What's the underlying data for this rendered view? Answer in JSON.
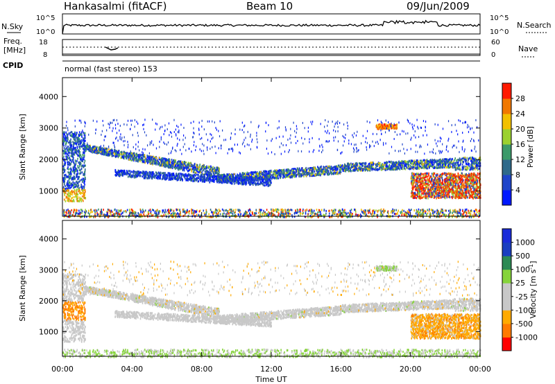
{
  "header": {
    "station": "Hankasalmi (fitACF)",
    "beam": "Beam 10",
    "date": "09/Jun/2009"
  },
  "top_panel": {
    "nsky_label": "N.Sky",
    "nsearch_label": "N.Search",
    "left_ticks": [
      "10^5",
      "10^0"
    ],
    "right_ticks": [
      "10^5",
      "10^0"
    ],
    "freq_label_1": "Freq.",
    "freq_label_2": "[MHz]",
    "freq_ticks": [
      "18",
      "8"
    ],
    "nave_label": "Nave",
    "nave_ticks": [
      "60",
      "0"
    ],
    "cpid_label": "CPID",
    "cpid_text": "normal (fast stereo) 153"
  },
  "colors": {
    "power_scale": [
      "#0018ff",
      "#1f45c9",
      "#2f6a8a",
      "#3c9a6a",
      "#9bd12f",
      "#f2c000",
      "#f07800",
      "#ff1a00"
    ],
    "velocity_scale": [
      "#ff0000",
      "#ff7a00",
      "#ffaa00",
      "#c8c8c8",
      "#c8c8c8",
      "#86d43b",
      "#2d8a54",
      "#1a3ec0",
      "#1a2bd9"
    ]
  },
  "chart_data": [
    {
      "type": "heatmap",
      "title": "",
      "ylabel": "Slant Range [km]",
      "ylim": [
        200,
        4600
      ],
      "yticks": [
        "1000",
        "2000",
        "3000",
        "4000"
      ],
      "xlim": [
        0,
        24
      ],
      "colorbar_label": "Power [dB]",
      "colorbar_ticks": [
        "4",
        "8",
        "12",
        "16",
        "20",
        "24",
        "28"
      ],
      "bands": [
        {
          "range_km": [
            500,
            3000
          ],
          "hours": [
            0,
            1.3
          ],
          "level": "mid"
        },
        {
          "range_km": [
            1300,
            2300
          ],
          "hours": [
            1.3,
            9
          ],
          "level": "mid"
        },
        {
          "range_km": [
            1200,
            1900
          ],
          "hours": [
            9,
            16
          ],
          "level": "low"
        },
        {
          "range_km": [
            1600,
            2000
          ],
          "hours": [
            16,
            22.5
          ],
          "level": "mid"
        },
        {
          "range_km": [
            800,
            1600
          ],
          "hours": [
            20,
            24
          ],
          "level": "high"
        },
        {
          "range_km": [
            3000,
            3150
          ],
          "hours": [
            18,
            19
          ],
          "level": "high"
        }
      ]
    },
    {
      "type": "heatmap",
      "title": "",
      "ylabel": "Slant Range [km]",
      "ylim": [
        200,
        4600
      ],
      "yticks": [
        "1000",
        "2000",
        "3000",
        "4000"
      ],
      "xlim": [
        0,
        24
      ],
      "xlabel": "Time UT",
      "xticks": [
        "00:00",
        "04:00",
        "08:00",
        "12:00",
        "16:00",
        "20:00",
        "00:00"
      ],
      "colorbar_label": "Velocity [m s^-1]",
      "colorbar_ticks": [
        "1000",
        "500",
        "100",
        "25",
        "-25",
        "-100",
        "-500",
        "-1000"
      ]
    }
  ]
}
